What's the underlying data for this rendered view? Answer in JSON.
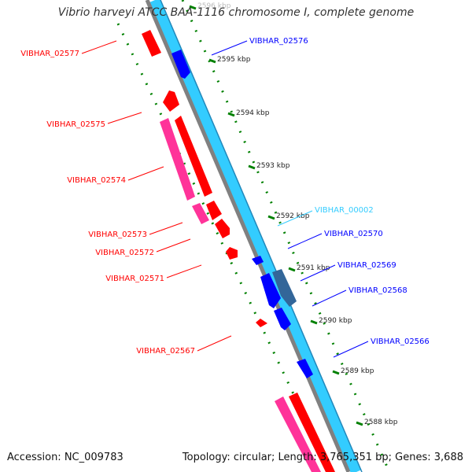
{
  "title": "Vibrio harveyi ATCC BAA-1116 chromosome I, complete genome",
  "footer": {
    "accession": "Accession: NC_009783",
    "stats": "Topology: circular; Length: 3,765,351 bp; Genes: 3,688"
  },
  "colors": {
    "backbone": "#808080",
    "forward_track": "#33ccff",
    "cds_forward": "#0000ff",
    "cds_forward_alt": "#336699",
    "cds_reverse": "#ff0000",
    "cds_reverse_alt": "#ff3399",
    "rna_label": "#33ccff",
    "tick": "#008000"
  },
  "scale": {
    "ticks": [
      {
        "label": "2596 kbp",
        "kbp": 2596
      },
      {
        "label": "2595 kbp",
        "kbp": 2595
      },
      {
        "label": "2594 kbp",
        "kbp": 2594
      },
      {
        "label": "2593 kbp",
        "kbp": 2593
      },
      {
        "label": "2592 kbp",
        "kbp": 2592
      },
      {
        "label": "2591 kbp",
        "kbp": 2591
      },
      {
        "label": "2590 kbp",
        "kbp": 2590
      },
      {
        "label": "2589 kbp",
        "kbp": 2589
      },
      {
        "label": "2588 kbp",
        "kbp": 2588
      }
    ]
  },
  "features": {
    "reverse": [
      {
        "label": "VIBHAR_02577"
      },
      {
        "label": "VIBHAR_02575"
      },
      {
        "label": "VIBHAR_02574"
      },
      {
        "label": "VIBHAR_02573"
      },
      {
        "label": "VIBHAR_02572"
      },
      {
        "label": "VIBHAR_02571"
      },
      {
        "label": "VIBHAR_02567"
      }
    ],
    "forward": [
      {
        "label": "VIBHAR_02576"
      },
      {
        "label": "VIBHAR_00002"
      },
      {
        "label": "VIBHAR_02570"
      },
      {
        "label": "VIBHAR_02569"
      },
      {
        "label": "VIBHAR_02568"
      },
      {
        "label": "VIBHAR_02566"
      }
    ]
  }
}
